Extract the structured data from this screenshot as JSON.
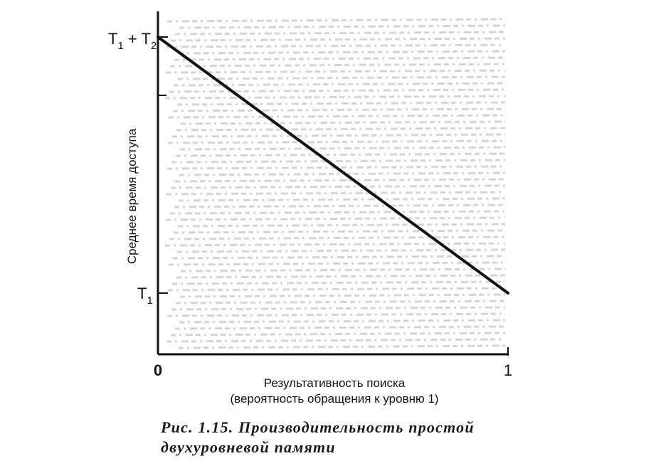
{
  "chart_data": {
    "type": "line",
    "x": [
      0,
      1
    ],
    "y_labels": {
      "T1_plus_T2": {
        "base1": "T",
        "sub1": "1",
        "plus": " + ",
        "base2": "T",
        "sub2": "2"
      },
      "T1": {
        "base": "T",
        "sub": "1"
      }
    },
    "series": [
      {
        "x": [
          0,
          1
        ],
        "y": [
          "T1 + T2",
          "T1"
        ]
      }
    ],
    "x_ticks": [
      "0",
      "1"
    ],
    "xlabel_line1": "Результативность поиска",
    "xlabel_line2": "(вероятность обращения к уровню 1)",
    "ylabel": "Среднее время доступа",
    "xlim": [
      0,
      1
    ],
    "line_color": "#111111"
  },
  "caption": {
    "line1": "Рис. 1.15. Производительность простой",
    "line2": "двухуровневой памяти"
  }
}
